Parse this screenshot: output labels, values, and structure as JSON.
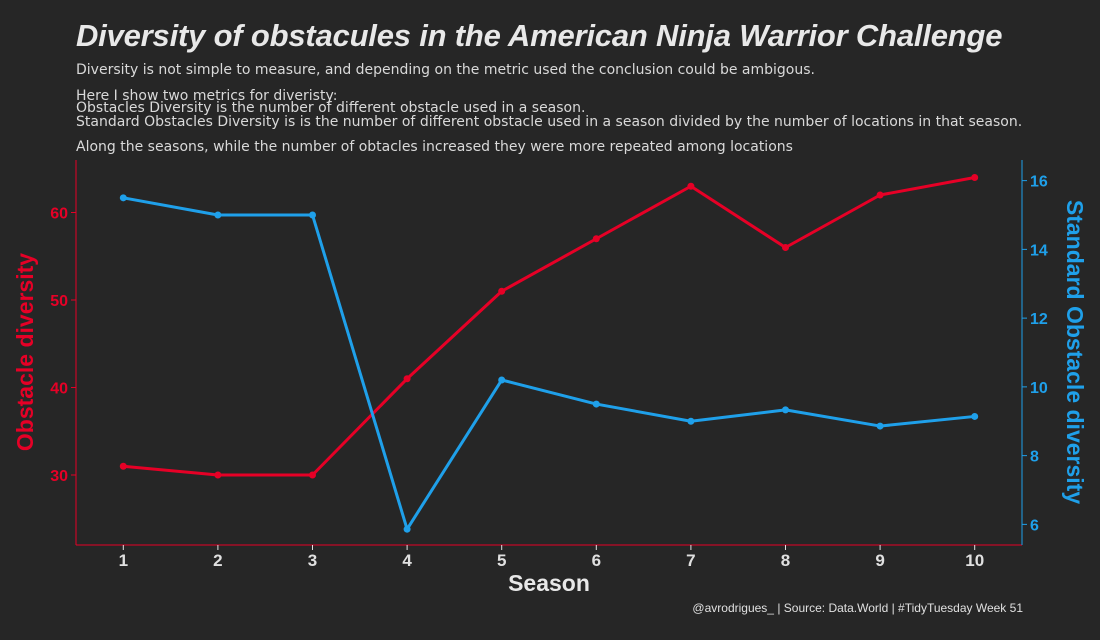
{
  "title": "Diversity of obstacules in the American Ninja Warrior Challenge",
  "subtitle_lines": [
    "Diversity is not simple to measure, and depending on the metric used the conclusion could be ambigous.",
    "Here I show two metrics for diveristy:",
    "Obstacles Diversity is the number of different obstacle used in a season.",
    "Standard Obstacles Diversity is is the number of different obstacle used in a season divided by the number of locations in that season.",
    "Along the seasons, while the number of obtacles increased they were more repeated among locations"
  ],
  "caption": "@avrodrigues_ | Source: Data.World | #TidyTuesday Week 51",
  "colors": {
    "background": "#262626",
    "obstacle": "#e60026",
    "standard": "#1fa0ea",
    "text": "#e0e0e0"
  },
  "chart_data": {
    "type": "line",
    "xlabel": "Season",
    "ylabel_left": "Obstacle diversity",
    "ylabel_right": "Standard Obstacle diversity",
    "x": [
      1,
      2,
      3,
      4,
      5,
      6,
      7,
      8,
      9,
      10
    ],
    "x_ticks": [
      1,
      2,
      3,
      4,
      5,
      6,
      7,
      8,
      9,
      10
    ],
    "ylim_left": [
      22,
      66
    ],
    "yticks_left": [
      30,
      40,
      50,
      60
    ],
    "ylim_right": [
      5.4,
      16.6
    ],
    "yticks_right": [
      6,
      8,
      10,
      12,
      14,
      16
    ],
    "series": [
      {
        "axis": "left",
        "color": "#e60026",
        "values": [
          31,
          30,
          30,
          41,
          51,
          57,
          63,
          56,
          62,
          64
        ]
      },
      {
        "axis": "right",
        "color": "#1fa0ea",
        "values": [
          15.5,
          15.0,
          15.0,
          5.86,
          10.2,
          9.5,
          9.0,
          9.33,
          8.86,
          9.14
        ]
      }
    ],
    "grid": false
  }
}
